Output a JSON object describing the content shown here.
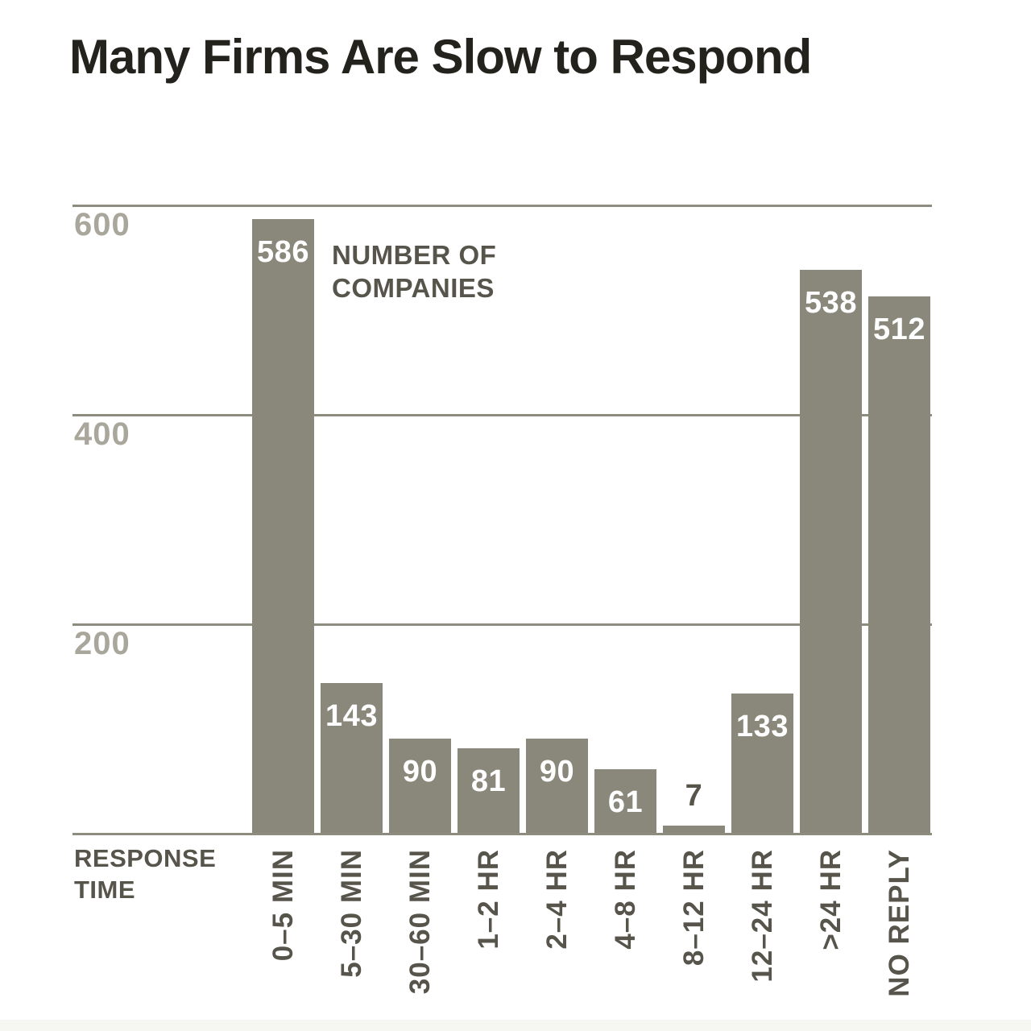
{
  "title": "Many Firms Are Slow to Respond",
  "annotation": {
    "line1": "NUMBER OF",
    "line2": "COMPANIES"
  },
  "x_axis_title": {
    "line1": "RESPONSE",
    "line2": "TIME"
  },
  "chart_data": {
    "type": "bar",
    "title": "Many Firms Are Slow to Respond",
    "categories": [
      "0–5 MIN",
      "5–30 MIN",
      "30–60 MIN",
      "1–2 HR",
      "2–4 HR",
      "4–8 HR",
      "8–12 HR",
      "12–24 HR",
      ">24 HR",
      "NO REPLY"
    ],
    "values": [
      586,
      143,
      90,
      81,
      90,
      61,
      7,
      133,
      538,
      512
    ],
    "xlabel": "RESPONSE TIME",
    "ylabel": "NUMBER OF COMPANIES",
    "yticks": [
      600,
      400,
      200
    ],
    "ylim": [
      0,
      620
    ],
    "grid": true,
    "legend": "none",
    "value_labels": "inside-top, white; small bars labeled above in dark gray",
    "outside_label_indices": [
      6
    ],
    "colors": {
      "bar": "#8a887b",
      "gridline": "#8e8c7f",
      "ytick_label": "#a9a79b",
      "axis_text": "#57554b",
      "title_text": "#24221d",
      "value_label_inside": "#ffffff",
      "background": "#ffffff"
    }
  }
}
